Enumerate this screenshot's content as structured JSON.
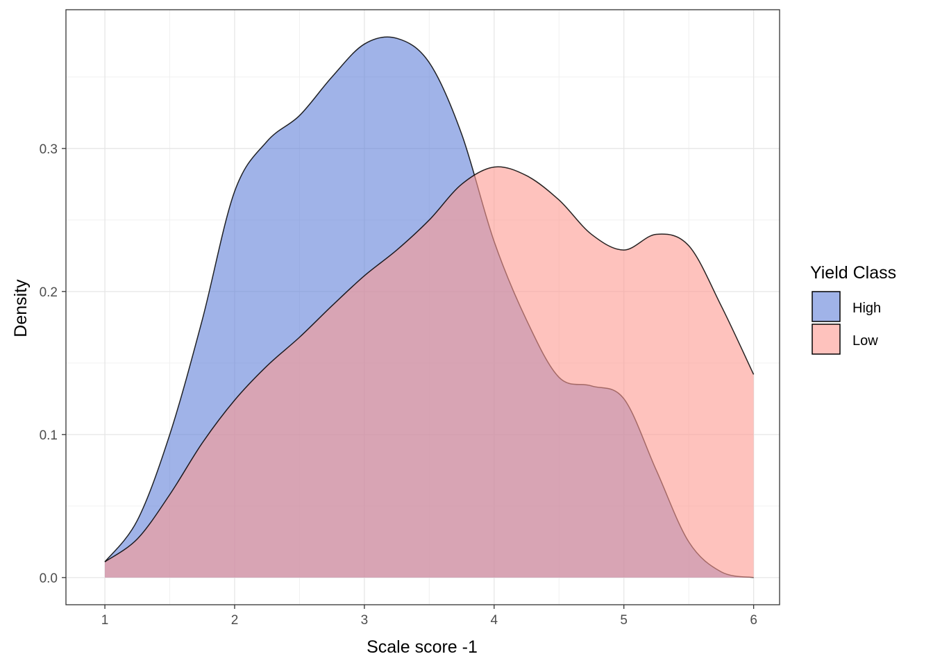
{
  "chart_data": {
    "type": "area",
    "xlabel": "Scale score -1",
    "ylabel": "Density",
    "xlim": [
      0.7,
      6.2
    ],
    "ylim": [
      -0.019,
      0.397
    ],
    "x_ticks": [
      1,
      2,
      3,
      4,
      5,
      6
    ],
    "x_tick_labels": [
      "1",
      "2",
      "3",
      "4",
      "5",
      "6"
    ],
    "y_ticks": [
      0.0,
      0.1,
      0.2,
      0.3
    ],
    "y_tick_labels": [
      "0.0",
      "0.1",
      "0.2",
      "0.3"
    ],
    "grid": true,
    "legend": {
      "title": "Yield Class",
      "position": "right"
    },
    "series": [
      {
        "name": "High",
        "color": "#6181d9",
        "x": [
          1.0,
          1.25,
          1.5,
          1.75,
          2.0,
          2.25,
          2.5,
          2.75,
          3.0,
          3.25,
          3.5,
          3.75,
          4.0,
          4.25,
          4.5,
          4.75,
          5.0,
          5.25,
          5.5,
          5.75,
          6.0
        ],
        "y": [
          0.011,
          0.04,
          0.1,
          0.18,
          0.27,
          0.305,
          0.323,
          0.35,
          0.373,
          0.377,
          0.36,
          0.31,
          0.235,
          0.18,
          0.14,
          0.134,
          0.125,
          0.075,
          0.025,
          0.004,
          0.0
        ]
      },
      {
        "name": "Low",
        "color": "#fe9a91",
        "x": [
          1.0,
          1.25,
          1.5,
          1.75,
          2.0,
          2.25,
          2.5,
          2.75,
          3.0,
          3.25,
          3.5,
          3.75,
          4.0,
          4.25,
          4.5,
          4.75,
          5.0,
          5.25,
          5.5,
          5.75,
          6.0
        ],
        "y": [
          0.011,
          0.027,
          0.058,
          0.094,
          0.124,
          0.148,
          0.168,
          0.19,
          0.211,
          0.229,
          0.25,
          0.275,
          0.287,
          0.281,
          0.264,
          0.24,
          0.229,
          0.24,
          0.232,
          0.19,
          0.142
        ]
      }
    ]
  }
}
